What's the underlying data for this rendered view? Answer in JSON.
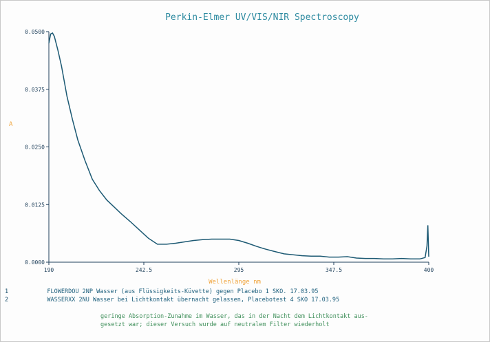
{
  "colors": {
    "title": "#2d8aa0",
    "axis": "#1e3f5a",
    "curve": "#1c5973",
    "unit_label": "#f0a43c",
    "legend": "#1d5f7d",
    "comment": "#3f8f5a"
  },
  "chart_data": {
    "type": "line",
    "title": "Perkin-Elmer UV/VIS/NIR Spectroscopy",
    "xlabel": "Wellenlänge  nm",
    "ylabel": "A",
    "xlim": [
      190,
      400
    ],
    "ylim": [
      0.0,
      0.05
    ],
    "x_ticks": [
      190,
      242.5,
      295,
      347.5,
      400
    ],
    "x_tick_labels": [
      "190",
      "242.5",
      "295",
      "347.5",
      "400"
    ],
    "y_ticks": [
      0.0,
      0.0125,
      0.025,
      0.0375,
      0.05
    ],
    "y_tick_labels": [
      "0.0000",
      "0.0125",
      "0.0250",
      "0.0375",
      "0.0500"
    ],
    "grid": false,
    "series": [
      {
        "x": [
          190,
          191,
          192,
          193,
          195,
          197,
          200,
          203,
          206,
          210,
          214,
          218,
          222,
          226,
          230,
          235,
          240,
          245,
          250,
          255,
          260,
          265,
          270,
          275,
          280,
          285,
          290,
          295,
          300,
          305,
          310,
          315,
          320,
          325,
          330,
          335,
          340,
          345,
          350,
          355,
          360,
          365,
          370,
          375,
          380,
          385,
          390,
          395,
          398,
          399,
          399.5,
          400
        ],
        "y": [
          0.0475,
          0.0495,
          0.0497,
          0.049,
          0.046,
          0.0425,
          0.036,
          0.031,
          0.0265,
          0.022,
          0.018,
          0.0155,
          0.0135,
          0.012,
          0.0105,
          0.0088,
          0.007,
          0.0052,
          0.0039,
          0.0039,
          0.0041,
          0.0044,
          0.0047,
          0.0049,
          0.005,
          0.005,
          0.005,
          0.0047,
          0.0041,
          0.0034,
          0.0028,
          0.0023,
          0.0018,
          0.0016,
          0.0014,
          0.0013,
          0.0013,
          0.0011,
          0.0011,
          0.0012,
          0.0009,
          0.0008,
          0.0008,
          0.0007,
          0.0007,
          0.0008,
          0.0007,
          0.0007,
          0.001,
          0.0035,
          0.008,
          0.0012
        ]
      }
    ]
  },
  "legend": [
    {
      "marker": "1",
      "text": "FLOWERDOU  2NP  Wasser (aus Flüssigkeits-Küvette) gegen Placebo  1 SKO. 17.03.95"
    },
    {
      "marker": "2",
      "text": "WASSERXX  2NU  Wasser bei Lichtkontakt übernacht gelassen, Placebotest 4 SKO 17.03.95"
    }
  ],
  "comments": [
    "geringe Absorption-Zunahme im Wasser, das in der Nacht dem Lichtkontakt aus-",
    "gesetzt war; dieser Versuch wurde auf neutralem Filter wiederholt"
  ]
}
